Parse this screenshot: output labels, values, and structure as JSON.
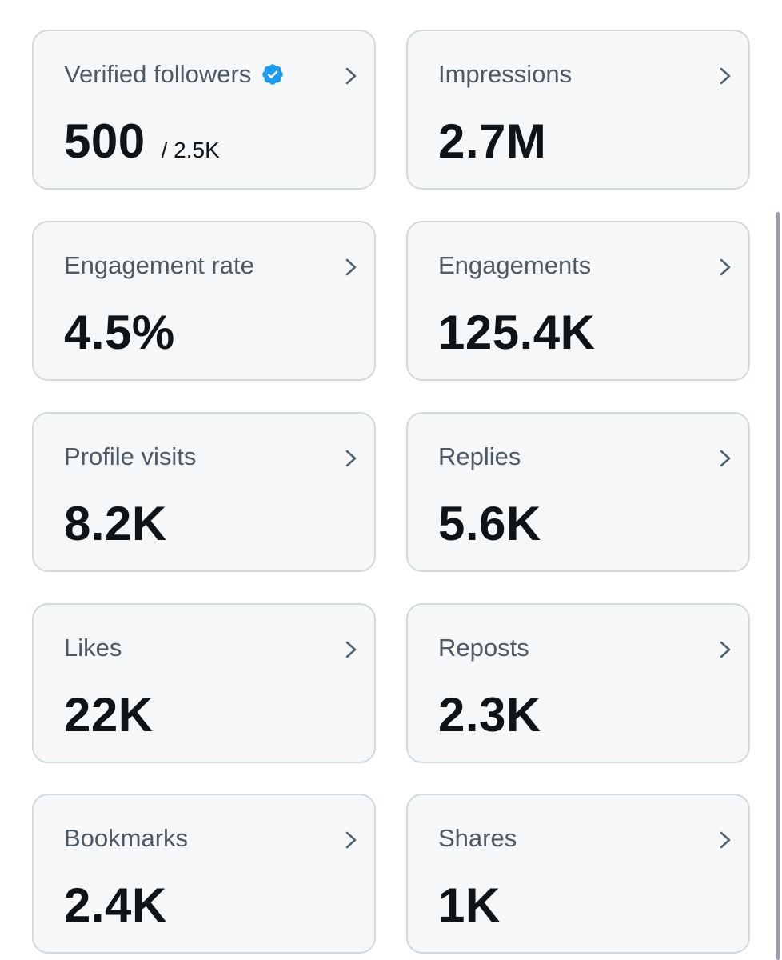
{
  "cards": [
    {
      "label": "Verified followers",
      "value": "500",
      "sub": "/ 2.5K",
      "icon": "verified-badge-icon"
    },
    {
      "label": "Impressions",
      "value": "2.7M"
    },
    {
      "label": "Engagement rate",
      "value": "4.5%"
    },
    {
      "label": "Engagements",
      "value": "125.4K"
    },
    {
      "label": "Profile visits",
      "value": "8.2K"
    },
    {
      "label": "Replies",
      "value": "5.6K"
    },
    {
      "label": "Likes",
      "value": "22K"
    },
    {
      "label": "Reposts",
      "value": "2.3K"
    },
    {
      "label": "Bookmarks",
      "value": "2.4K"
    },
    {
      "label": "Shares",
      "value": "1K"
    }
  ],
  "colors": {
    "card_bg": "#f5f7f8",
    "card_border": "#cfd9de",
    "label": "#4d5965",
    "value": "#0f1419",
    "verified": "#1d9bf0"
  }
}
